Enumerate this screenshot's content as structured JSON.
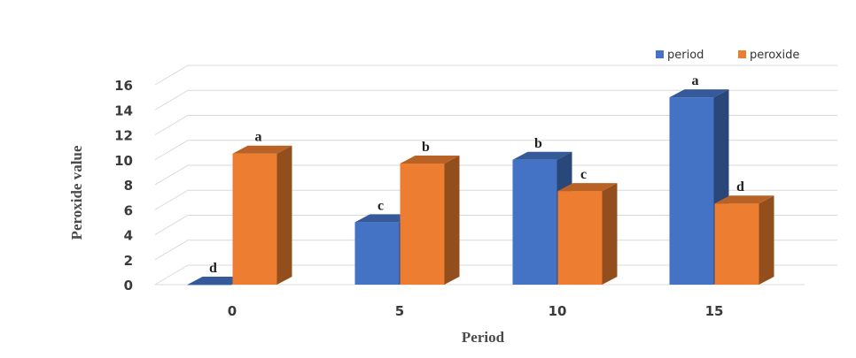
{
  "chart_data": {
    "type": "bar",
    "subtype": "3d-clustered-column",
    "categories": [
      "0",
      "5",
      "10",
      "15"
    ],
    "series": [
      {
        "name": "period",
        "color": "#4472C4",
        "values": [
          0,
          5,
          10,
          15
        ],
        "labels": [
          "d",
          "c",
          "b",
          "a"
        ]
      },
      {
        "name": "peroxide",
        "color": "#ED7D31",
        "values": [
          10.5,
          9.7,
          7.5,
          6.5
        ],
        "labels": [
          "a",
          "b",
          "c",
          "d"
        ]
      }
    ],
    "xlabel": "Period",
    "ylabel": "Peroxide value",
    "ylim": [
      0,
      16
    ],
    "yticks": [
      "0",
      "2",
      "4",
      "6",
      "8",
      "10",
      "12",
      "14",
      "16"
    ],
    "grid": true,
    "legend_position": "top-right"
  }
}
